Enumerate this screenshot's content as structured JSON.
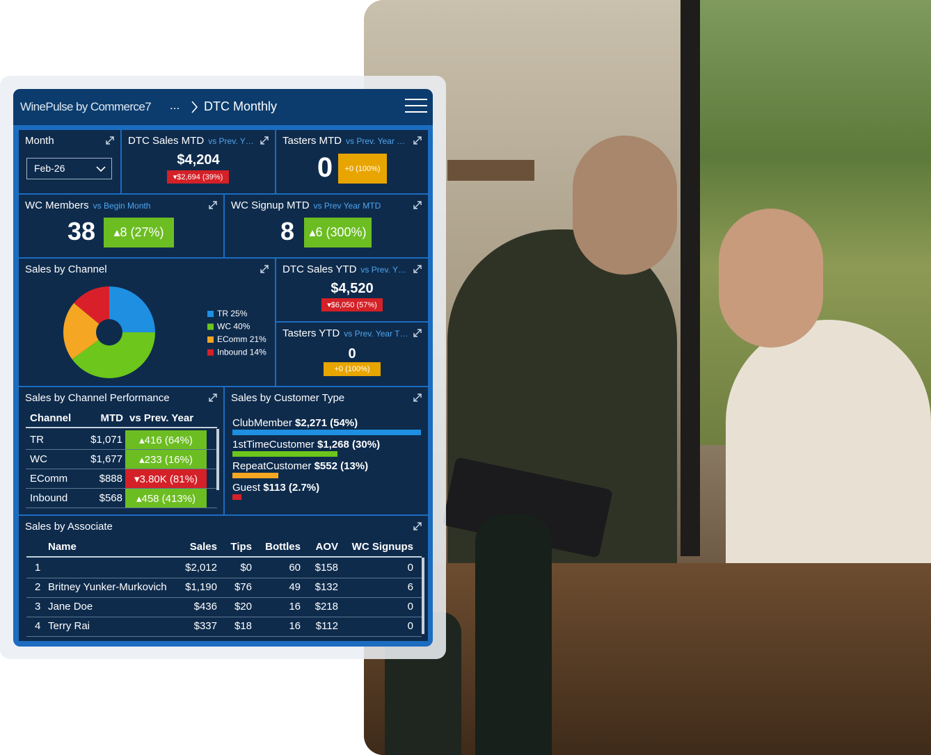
{
  "header": {
    "brand": "WinePulse by Commerce7",
    "breadcrumb": "...",
    "page": "DTC Monthly"
  },
  "tiles": {
    "month": {
      "title": "Month",
      "value": "Feb-26"
    },
    "dtc_sales_mtd": {
      "title": "DTC Sales MTD",
      "compare": "vs Prev. Y…",
      "value": "$4,204",
      "delta": "▾$2,694 (39%)",
      "trend": "down"
    },
    "tasters_mtd": {
      "title": "Tasters MTD",
      "compare": "vs Prev. Year …",
      "value": "0",
      "delta": "+0 (100%)",
      "trend": "flat"
    },
    "wc_members": {
      "title": "WC Members",
      "compare": "vs Begin Month",
      "value": "38",
      "delta": "▴8 (27%)",
      "trend": "up"
    },
    "wc_signup_mtd": {
      "title": "WC Signup MTD",
      "compare": "vs Prev Year MTD",
      "value": "8",
      "delta": "▴6 (300%)",
      "trend": "up"
    },
    "dtc_sales_ytd": {
      "title": "DTC Sales YTD",
      "compare": "vs Prev. Y…",
      "value": "$4,520",
      "delta": "▾$6,050 (57%)",
      "trend": "down"
    },
    "tasters_ytd": {
      "title": "Tasters YTD",
      "compare": "vs Prev. Year T…",
      "value": "0",
      "delta": "+0 (100%)",
      "trend": "flat"
    }
  },
  "sales_by_channel": {
    "title": "Sales by Channel",
    "slices": [
      {
        "name": "TR",
        "value": 25,
        "value_label": "25%",
        "color": "#1e8fe1"
      },
      {
        "name": "WC",
        "value": 40,
        "value_label": "40%",
        "color": "#6cc61b"
      },
      {
        "name": "EComm",
        "value": 21,
        "value_label": "21%",
        "color": "#f5a623"
      },
      {
        "name": "Inbound",
        "value": 14,
        "value_label": "14%",
        "color": "#d9202a"
      }
    ]
  },
  "channel_performance": {
    "title": "Sales by Channel Performance",
    "columns": [
      "Channel",
      "MTD",
      "vs Prev. Year"
    ],
    "rows": [
      [
        "TR",
        "$1,071",
        "▴416 (64%)"
      ],
      [
        "WC",
        "$1,677",
        "▴233 (16%)"
      ],
      [
        "EComm",
        "$888",
        "▾3.80K (81%)"
      ],
      [
        "Inbound",
        "$568",
        "▴458 (413%)"
      ]
    ],
    "trend": [
      "up",
      "up",
      "down",
      "up"
    ]
  },
  "customer_type": {
    "title": "Sales by Customer Type",
    "items": [
      {
        "name": "ClubMember",
        "value": 2271,
        "value_label": "$2,271",
        "share": "(54%)",
        "color": "#1e8fe1"
      },
      {
        "name": "1stTimeCustomer",
        "value": 1268,
        "value_label": "$1,268",
        "share": "(30%)",
        "color": "#6cc61b"
      },
      {
        "name": "RepeatCustomer",
        "value": 552,
        "value_label": "$552",
        "share": "(13%)",
        "color": "#f5a623"
      },
      {
        "name": "Guest",
        "value": 113,
        "value_label": "$113",
        "share": "(2.7%)",
        "color": "#d9202a"
      }
    ]
  },
  "associates": {
    "title": "Sales by Associate",
    "columns": [
      "Name",
      "Sales",
      "Tips",
      "Bottles",
      "AOV",
      "WC Signups"
    ],
    "rows": [
      [
        "1",
        null,
        "$2,012",
        "$0",
        "60",
        "$158",
        "0"
      ],
      [
        "2",
        "Britney Yunker-Murkovich",
        "$1,190",
        "$76",
        "49",
        "$132",
        "6"
      ],
      [
        "3",
        "Jane Doe",
        "$436",
        "$20",
        "16",
        "$218",
        "0"
      ],
      [
        "4",
        "Terry Rai",
        "$337",
        "$18",
        "16",
        "$112",
        "0"
      ]
    ]
  }
}
